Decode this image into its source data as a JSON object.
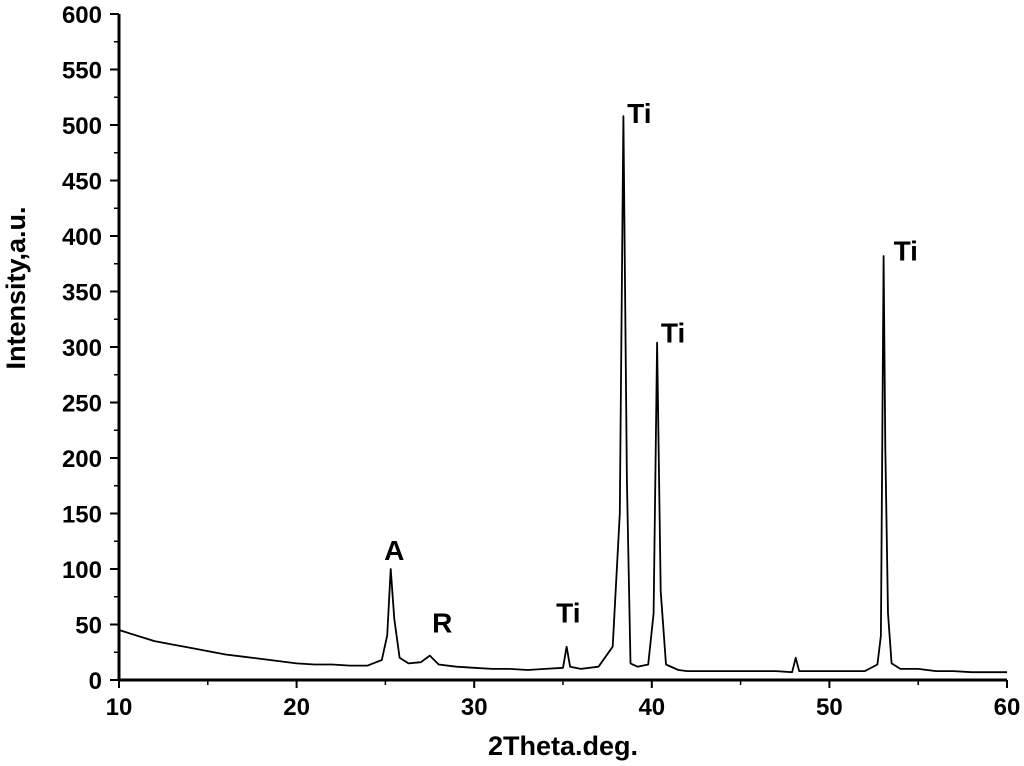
{
  "chart_data": {
    "type": "line",
    "title": "",
    "xlabel": "2Theta.deg.",
    "ylabel": "Intensity,a.u.",
    "xlim": [
      10,
      60
    ],
    "ylim": [
      0,
      600
    ],
    "xticks": [
      10,
      20,
      30,
      40,
      50,
      60
    ],
    "yticks": [
      0,
      50,
      100,
      150,
      200,
      250,
      300,
      350,
      400,
      450,
      500,
      550,
      600
    ],
    "grid": false,
    "legend": "none",
    "series": [
      {
        "x": [
          10,
          11,
          12,
          13,
          14,
          15,
          16,
          17,
          18,
          19,
          20,
          21,
          22,
          23,
          24,
          24.8,
          25.1,
          25.3,
          25.5,
          25.8,
          26.3,
          27,
          27.5,
          28,
          29,
          30,
          31,
          32,
          33,
          34,
          35,
          35.2,
          35.4,
          36,
          37,
          37.8,
          38.2,
          38.4,
          38.6,
          38.8,
          39.2,
          39.8,
          40.1,
          40.3,
          40.5,
          40.8,
          41.5,
          42,
          43,
          44,
          45,
          46,
          47,
          47.9,
          48.1,
          48.3,
          49,
          50,
          51,
          52,
          52.7,
          52.9,
          53.05,
          53.15,
          53.3,
          53.5,
          54,
          55,
          56,
          57,
          58,
          59,
          60
        ],
        "y": [
          45,
          40,
          35,
          32,
          29,
          26,
          23,
          21,
          19,
          17,
          15,
          14,
          14,
          13,
          13,
          18,
          40,
          100,
          55,
          20,
          15,
          16,
          22,
          14,
          12,
          11,
          10,
          10,
          9,
          10,
          11,
          30,
          12,
          10,
          12,
          30,
          150,
          508,
          180,
          15,
          12,
          14,
          60,
          304,
          80,
          14,
          9,
          8,
          8,
          8,
          8,
          8,
          8,
          7,
          20,
          8,
          8,
          8,
          8,
          8,
          14,
          40,
          382,
          210,
          60,
          15,
          10,
          10,
          8,
          8,
          7,
          7,
          7
        ]
      }
    ],
    "annotations": [
      {
        "text": "A",
        "x": 25.5,
        "y": 108
      },
      {
        "text": "R",
        "x": 28.2,
        "y": 43
      },
      {
        "text": "Ti",
        "x": 35.3,
        "y": 52
      },
      {
        "text": "Ti",
        "x": 39.3,
        "y": 502
      },
      {
        "text": "Ti",
        "x": 41.2,
        "y": 304
      },
      {
        "text": "Ti",
        "x": 54.3,
        "y": 378
      }
    ]
  }
}
